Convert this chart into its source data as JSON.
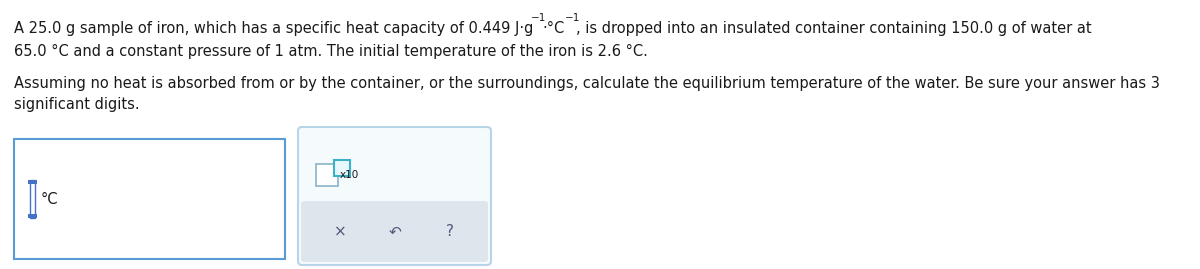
{
  "bg_color": "#ffffff",
  "text_color": "#1a1a1a",
  "box_border_color": "#5b9bd5",
  "font_size_main": 10.5,
  "font_size_super": 7.5,
  "font_size_symbol": 11,
  "line1a": "A 25.0 g sample of iron, which has a specific heat capacity of 0.449 J·g",
  "line1_sup1": "−1",
  "line1b": "·°C",
  "line1_sup2": "−1",
  "line1c": ", is dropped into an insulated container containing 150.0 g of water at",
  "line2": "65.0 °C and a constant pressure of 1 atm. The initial temperature of the iron is 2.6 °C.",
  "line3": "Assuming no heat is absorbed from or by the container, or the surroundings, calculate the equilibrium temperature of the water. Be sure your answer has 3",
  "line4": "significant digits.",
  "input_box_label": "°C",
  "x10_label": "x10"
}
